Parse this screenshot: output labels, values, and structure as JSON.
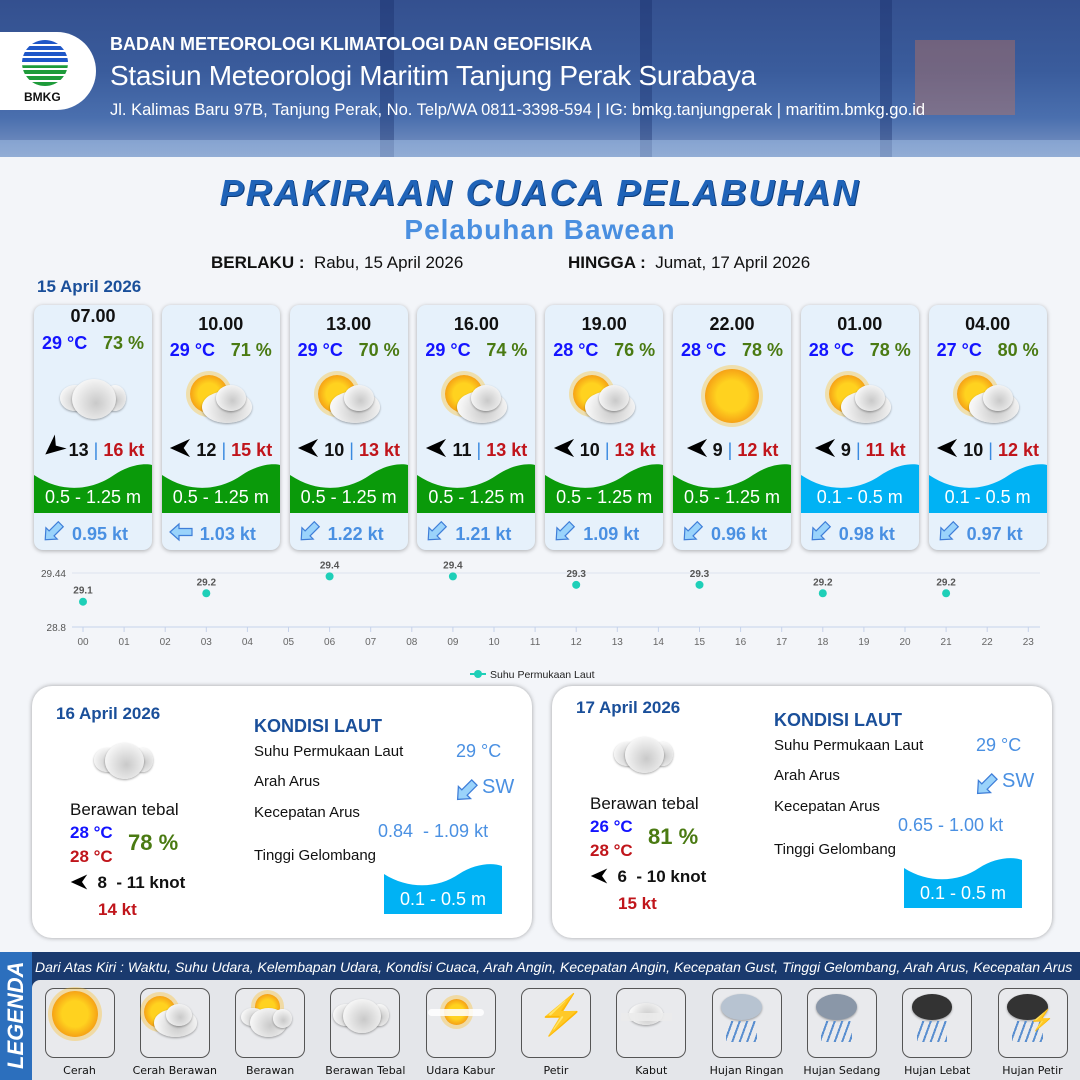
{
  "header": {
    "logo_text": "BMKG",
    "agency": "BADAN METEOROLOGI KLIMATOLOGI DAN GEOFISIKA",
    "station": "Stasiun Meteorologi Maritim Tanjung Perak Surabaya",
    "contact": "Jl. Kalimas Baru 97B, Tanjung Perak, No. Telp/WA 0811-3398-594 | IG: bmkg.tanjungperak | maritim.bmkg.go.id"
  },
  "title": "PRAKIRAAN CUACA PELABUHAN",
  "subtitle": "Pelabuhan Bawean",
  "validity": {
    "from_label": "BERLAKU :",
    "from": "Rabu, 15 April 2026",
    "to_label": "HINGGA :",
    "to": "Jumat, 17 April 2026"
  },
  "day1": {
    "date": "15 April 2026",
    "cards": [
      {
        "time": "07.00",
        "temp": "29 °C",
        "hum": "73 %",
        "icon": "berawan-tebal",
        "wind_dir": "SE",
        "wind": "13",
        "gust": "16 kt",
        "wave": "0.5 - 1.25 m",
        "wave_color": "#0a9a0a",
        "cur_dir": "SW",
        "cur": "0.95 kt"
      },
      {
        "time": "10.00",
        "temp": "29 °C",
        "hum": "71 %",
        "icon": "cerah-berawan",
        "wind_dir": "E",
        "wind": "12",
        "gust": "15 kt",
        "wave": "0.5 - 1.25 m",
        "wave_color": "#0a9a0a",
        "cur_dir": "W",
        "cur": "1.03 kt"
      },
      {
        "time": "13.00",
        "temp": "29 °C",
        "hum": "70 %",
        "icon": "cerah-berawan",
        "wind_dir": "E",
        "wind": "10",
        "gust": "13 kt",
        "wave": "0.5 - 1.25 m",
        "wave_color": "#0a9a0a",
        "cur_dir": "SW",
        "cur": "1.22 kt"
      },
      {
        "time": "16.00",
        "temp": "29 °C",
        "hum": "74 %",
        "icon": "cerah-berawan",
        "wind_dir": "E",
        "wind": "11",
        "gust": "13 kt",
        "wave": "0.5 - 1.25 m",
        "wave_color": "#0a9a0a",
        "cur_dir": "SW",
        "cur": "1.21 kt"
      },
      {
        "time": "19.00",
        "temp": "28 °C",
        "hum": "76 %",
        "icon": "cerah-berawan",
        "wind_dir": "E",
        "wind": "10",
        "gust": "13 kt",
        "wave": "0.5 - 1.25 m",
        "wave_color": "#0a9a0a",
        "cur_dir": "SW",
        "cur": "1.09 kt"
      },
      {
        "time": "22.00",
        "temp": "28 °C",
        "hum": "78 %",
        "icon": "cerah",
        "wind_dir": "E",
        "wind": "9",
        "gust": "12 kt",
        "wave": "0.5 - 1.25 m",
        "wave_color": "#0a9a0a",
        "cur_dir": "SW",
        "cur": "0.96 kt"
      },
      {
        "time": "01.00",
        "temp": "28 °C",
        "hum": "78 %",
        "icon": "cerah-berawan",
        "wind_dir": "E",
        "wind": "9",
        "gust": "11 kt",
        "wave": "0.1 - 0.5 m",
        "wave_color": "#00b2f4",
        "cur_dir": "SW",
        "cur": "0.98 kt"
      },
      {
        "time": "04.00",
        "temp": "27 °C",
        "hum": "80 %",
        "icon": "cerah-berawan",
        "wind_dir": "E",
        "wind": "10",
        "gust": "12 kt",
        "wave": "0.1 - 0.5 m",
        "wave_color": "#00b2f4",
        "cur_dir": "SW",
        "cur": "0.97 kt"
      }
    ]
  },
  "chart_data": {
    "type": "line",
    "series": [
      {
        "name": "Suhu Permukaan Laut",
        "color": "#1ecfb8",
        "x": [
          "00",
          "03",
          "06",
          "09",
          "12",
          "15",
          "18",
          "21"
        ],
        "values": [
          29.1,
          29.2,
          29.4,
          29.4,
          29.3,
          29.3,
          29.2,
          29.2
        ]
      }
    ],
    "x_ticks": [
      "00",
      "01",
      "02",
      "03",
      "04",
      "05",
      "06",
      "07",
      "08",
      "09",
      "10",
      "11",
      "12",
      "13",
      "14",
      "15",
      "16",
      "17",
      "18",
      "19",
      "20",
      "21",
      "22",
      "23"
    ],
    "y_ticks": [
      "28.8",
      "29.44"
    ],
    "ylim": [
      28.8,
      29.44
    ],
    "legend": "bottom-center",
    "grid": true
  },
  "days": [
    {
      "date": "16 April 2026",
      "condition": "Berawan tebal",
      "icon": "berawan-tebal",
      "tmin": "28 °C",
      "tmax": "28 °C",
      "hum": "78 %",
      "wind_dir": "E",
      "wind": "8  - 11 knot",
      "gust": "14 kt",
      "sea": {
        "title": "KONDISI LAUT",
        "sst_label": "Suhu Permukaan Laut",
        "sst": "29 °C",
        "dir_label": "Arah Arus",
        "dir": "SW",
        "speed_label": "Kecepatan Arus",
        "speed": "0.84  - 1.09 kt",
        "wave_label": "Tinggi Gelombang",
        "wave": "0.1 - 0.5 m"
      }
    },
    {
      "date": "17 April 2026",
      "condition": "Berawan tebal",
      "icon": "berawan-tebal",
      "tmin": "26 °C",
      "tmax": "28 °C",
      "hum": "81 %",
      "wind_dir": "E",
      "wind": "6  - 10 knot",
      "gust": "15 kt",
      "sea": {
        "title": "KONDISI LAUT",
        "sst_label": "Suhu Permukaan Laut",
        "sst": "29 °C",
        "dir_label": "Arah Arus",
        "dir": "SW",
        "speed_label": "Kecepatan Arus",
        "speed": "0.65 - 1.00 kt",
        "wave_label": "Tinggi Gelombang",
        "wave": "0.1 - 0.5 m"
      }
    }
  ],
  "legend": {
    "title": "LEGENDA",
    "description": "Dari Atas Kiri : Waktu, Suhu Udara, Kelembapan Udara, Kondisi Cuaca, Arah Angin, Kecepatan Angin, Kecepatan Gust, Tinggi Gelombang, Arah Arus, Kecepatan Arus",
    "items": [
      {
        "label": "Cerah",
        "icon": "cerah"
      },
      {
        "label": "Cerah Berawan",
        "icon": "cerah-berawan"
      },
      {
        "label": "Berawan",
        "icon": "berawan"
      },
      {
        "label": "Berawan Tebal",
        "icon": "berawan-tebal"
      },
      {
        "label": "Udara Kabur",
        "icon": "udara-kabur"
      },
      {
        "label": "Petir",
        "icon": "petir"
      },
      {
        "label": "Kabut",
        "icon": "kabut"
      },
      {
        "label": "Hujan Ringan",
        "icon": "hujan-ringan"
      },
      {
        "label": "Hujan Sedang",
        "icon": "hujan-sedang"
      },
      {
        "label": "Hujan Lebat",
        "icon": "hujan-lebat"
      },
      {
        "label": "Hujan Petir",
        "icon": "hujan-petir"
      }
    ]
  }
}
